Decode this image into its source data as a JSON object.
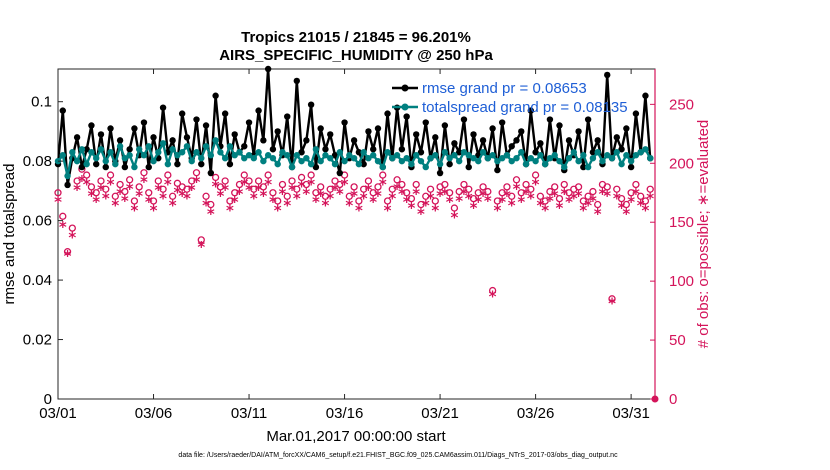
{
  "chart_data": {
    "type": "line",
    "title": [
      "Tropics 21015 / 21845 = 96.201%",
      "AIRS_SPECIFIC_HUMIDITY @ 250 hPa"
    ],
    "xlabel": "Mar.01,2017 00:00:00 start",
    "ylabel": "rmse and totalspread",
    "ylabel_right": "# of obs: o=possible; ∗=evaluated",
    "x_ticks": [
      "03/01",
      "03/06",
      "03/11",
      "03/16",
      "03/21",
      "03/26",
      "03/31"
    ],
    "x_tick_days": [
      0,
      5,
      10,
      15,
      20,
      25,
      30
    ],
    "xlim": [
      0,
      31.25
    ],
    "ylim": [
      0,
      0.111
    ],
    "y_ticks": [
      "0",
      "0.02",
      "0.04",
      "0.06",
      "0.08",
      "0.1"
    ],
    "y_tick_values": [
      0,
      0.02,
      0.04,
      0.06,
      0.08,
      0.1
    ],
    "ylim_right": [
      0,
      280
    ],
    "y_ticks_right": [
      "0",
      "50",
      "100",
      "150",
      "200",
      "250"
    ],
    "y_tick_values_right": [
      0,
      50,
      100,
      150,
      200,
      250
    ],
    "x": [
      0,
      0.25,
      0.5,
      0.75,
      1,
      1.25,
      1.5,
      1.75,
      2,
      2.25,
      2.5,
      2.75,
      3,
      3.25,
      3.5,
      3.75,
      4,
      4.25,
      4.5,
      4.75,
      5,
      5.25,
      5.5,
      5.75,
      6,
      6.25,
      6.5,
      6.75,
      7,
      7.25,
      7.5,
      7.75,
      8,
      8.25,
      8.5,
      8.75,
      9,
      9.25,
      9.5,
      9.75,
      10,
      10.25,
      10.5,
      10.75,
      11,
      11.25,
      11.5,
      11.75,
      12,
      12.25,
      12.5,
      12.75,
      13,
      13.25,
      13.5,
      13.75,
      14,
      14.25,
      14.5,
      14.75,
      15,
      15.25,
      15.5,
      15.75,
      16,
      16.25,
      16.5,
      16.75,
      17,
      17.25,
      17.5,
      17.75,
      18,
      18.25,
      18.5,
      18.75,
      19,
      19.25,
      19.5,
      19.75,
      20,
      20.25,
      20.5,
      20.75,
      21,
      21.25,
      21.5,
      21.75,
      22,
      22.25,
      22.5,
      22.75,
      23,
      23.25,
      23.5,
      23.75,
      24,
      24.25,
      24.5,
      24.75,
      25,
      25.25,
      25.5,
      25.75,
      26,
      26.25,
      26.5,
      26.75,
      27,
      27.25,
      27.5,
      27.75,
      28,
      28.25,
      28.5,
      28.75,
      29,
      29.25,
      29.5,
      29.75,
      30,
      30.25,
      30.5,
      30.75,
      31
    ],
    "series": [
      {
        "name": "rmse grand pr = 0.08653",
        "color": "#000000",
        "values": [
          0.079,
          0.097,
          0.072,
          0.081,
          0.088,
          0.078,
          0.084,
          0.092,
          0.079,
          0.089,
          0.078,
          0.091,
          0.08,
          0.087,
          0.078,
          0.084,
          0.091,
          0.082,
          0.093,
          0.078,
          0.088,
          0.081,
          0.098,
          0.083,
          0.087,
          0.079,
          0.096,
          0.088,
          0.081,
          0.094,
          0.079,
          0.092,
          0.076,
          0.102,
          0.085,
          0.096,
          0.079,
          0.089,
          0.083,
          0.085,
          0.093,
          0.082,
          0.097,
          0.087,
          0.111,
          0.084,
          0.09,
          0.082,
          0.095,
          0.078,
          0.107,
          0.083,
          0.087,
          0.099,
          0.078,
          0.091,
          0.084,
          0.089,
          0.082,
          0.076,
          0.093,
          0.081,
          0.087,
          0.083,
          0.079,
          0.09,
          0.084,
          0.091,
          0.078,
          0.096,
          0.081,
          0.098,
          0.084,
          0.095,
          0.078,
          0.089,
          0.083,
          0.093,
          0.081,
          0.088,
          0.076,
          0.092,
          0.079,
          0.086,
          0.083,
          0.094,
          0.078,
          0.089,
          0.082,
          0.087,
          0.081,
          0.091,
          0.077,
          0.093,
          0.082,
          0.085,
          0.087,
          0.09,
          0.079,
          0.097,
          0.083,
          0.086,
          0.079,
          0.094,
          0.081,
          0.092,
          0.077,
          0.087,
          0.082,
          0.09,
          0.078,
          0.094,
          0.083,
          0.087,
          0.079,
          0.109,
          0.081,
          0.088,
          0.084,
          0.091,
          0.078,
          0.096,
          0.083,
          0.102,
          0.081
        ],
        "marker": "filled-circle"
      },
      {
        "name": "totalspread grand pr = 0.08135",
        "color": "#008080",
        "values": [
          0.08,
          0.082,
          0.075,
          0.083,
          0.08,
          0.084,
          0.079,
          0.083,
          0.081,
          0.084,
          0.08,
          0.083,
          0.079,
          0.085,
          0.081,
          0.082,
          0.078,
          0.084,
          0.082,
          0.085,
          0.08,
          0.083,
          0.086,
          0.079,
          0.084,
          0.082,
          0.083,
          0.085,
          0.08,
          0.083,
          0.081,
          0.085,
          0.082,
          0.087,
          0.083,
          0.081,
          0.085,
          0.082,
          0.083,
          0.081,
          0.082,
          0.081,
          0.083,
          0.08,
          0.082,
          0.081,
          0.079,
          0.083,
          0.082,
          0.078,
          0.082,
          0.08,
          0.081,
          0.079,
          0.084,
          0.08,
          0.082,
          0.081,
          0.079,
          0.083,
          0.08,
          0.082,
          0.081,
          0.079,
          0.083,
          0.081,
          0.082,
          0.08,
          0.078,
          0.083,
          0.081,
          0.082,
          0.08,
          0.081,
          0.079,
          0.082,
          0.08,
          0.078,
          0.081,
          0.082,
          0.079,
          0.083,
          0.081,
          0.082,
          0.08,
          0.083,
          0.082,
          0.081,
          0.08,
          0.083,
          0.081,
          0.082,
          0.08,
          0.081,
          0.082,
          0.08,
          0.081,
          0.083,
          0.079,
          0.081,
          0.08,
          0.082,
          0.079,
          0.081,
          0.082,
          0.08,
          0.078,
          0.081,
          0.083,
          0.08,
          0.082,
          0.078,
          0.081,
          0.083,
          0.08,
          0.082,
          0.081,
          0.083,
          0.079,
          0.082,
          0.08,
          0.082,
          0.083,
          0.084,
          0.081
        ],
        "marker": "filled-circle"
      },
      {
        "name": "obs possible",
        "color": "#d4145a",
        "axis": "right",
        "marker": "open-circle",
        "values": [
          175,
          155,
          125,
          145,
          185,
          195,
          190,
          180,
          175,
          185,
          178,
          190,
          172,
          182,
          176,
          186,
          168,
          180,
          192,
          175,
          168,
          185,
          178,
          190,
          172,
          183,
          180,
          178,
          185,
          192,
          135,
          172,
          165,
          188,
          180,
          185,
          168,
          175,
          182,
          190,
          185,
          178,
          185,
          180,
          190,
          175,
          168,
          182,
          172,
          185,
          178,
          188,
          182,
          190,
          175,
          180,
          172,
          178,
          185,
          182,
          190,
          172,
          180,
          168,
          178,
          185,
          175,
          180,
          190,
          168,
          178,
          186,
          182,
          175,
          170,
          182,
          165,
          172,
          178,
          168,
          180,
          182,
          175,
          162,
          176,
          182,
          178,
          170,
          175,
          180,
          176,
          92,
          168,
          175,
          180,
          172,
          186,
          175,
          182,
          178,
          190,
          172,
          168,
          176,
          180,
          170,
          182,
          175,
          178,
          180,
          168,
          172,
          176,
          165,
          182,
          180,
          85,
          178,
          170,
          165,
          175,
          182,
          172,
          168,
          178
        ]
      },
      {
        "name": "obs evaluated",
        "color": "#d4145a",
        "axis": "right",
        "marker": "asterisk",
        "values": [
          168,
          147,
          122,
          138,
          178,
          186,
          183,
          173,
          168,
          178,
          171,
          183,
          165,
          175,
          169,
          179,
          161,
          173,
          185,
          168,
          161,
          178,
          171,
          183,
          165,
          176,
          173,
          171,
          178,
          185,
          130,
          165,
          158,
          181,
          173,
          178,
          161,
          168,
          175,
          183,
          178,
          171,
          178,
          173,
          183,
          168,
          161,
          175,
          165,
          178,
          171,
          181,
          175,
          183,
          168,
          173,
          165,
          171,
          178,
          175,
          183,
          165,
          173,
          161,
          171,
          178,
          168,
          173,
          183,
          161,
          171,
          179,
          175,
          168,
          163,
          175,
          158,
          165,
          171,
          161,
          173,
          175,
          168,
          155,
          169,
          175,
          171,
          163,
          168,
          173,
          169,
          88,
          161,
          168,
          173,
          165,
          179,
          168,
          175,
          171,
          183,
          165,
          161,
          169,
          173,
          163,
          175,
          168,
          171,
          173,
          161,
          165,
          169,
          158,
          175,
          173,
          82,
          171,
          163,
          158,
          168,
          175,
          165,
          161,
          171
        ]
      }
    ],
    "legend": {
      "location": "top-right",
      "entries": [
        "rmse grand pr = 0.08653",
        "totalspread grand pr = 0.08135"
      ]
    },
    "grid": false
  },
  "footer": "data file: /Users/raeder/DAI/ATM_forcXX/CAM6_setup/f.e21.FHIST_BGC.f09_025.CAM6assim.011/Diags_NTrS_2017-03/obs_diag_output.nc"
}
